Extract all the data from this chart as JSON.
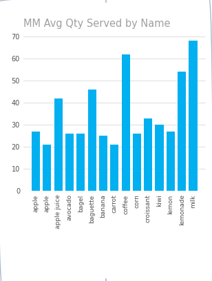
{
  "title": "MM Avg Qty Served by Name",
  "categories": [
    "apple",
    "apple",
    "apple juice",
    "avocado",
    "bagel",
    "baguette",
    "banana",
    "carrot",
    "coffee",
    "corn",
    "croissant",
    "kiwi",
    "lemon",
    "lemonade",
    "milk"
  ],
  "values": [
    27,
    21,
    42,
    26,
    26,
    46,
    25,
    21,
    62,
    26,
    33,
    30,
    27,
    54,
    68
  ],
  "bar_color": "#00b0f0",
  "background_color": "#ffffff",
  "title_color": "#a0a0a0",
  "title_fontsize": 10.5,
  "ylim": [
    0,
    70
  ],
  "yticks": [
    0,
    10,
    20,
    30,
    40,
    50,
    60,
    70
  ],
  "grid_color": "#d8d8d8",
  "border_color": "#aab8cc",
  "tick_label_color": "#505050",
  "tick_label_fontsize": 6.5,
  "ytick_fontsize": 7
}
